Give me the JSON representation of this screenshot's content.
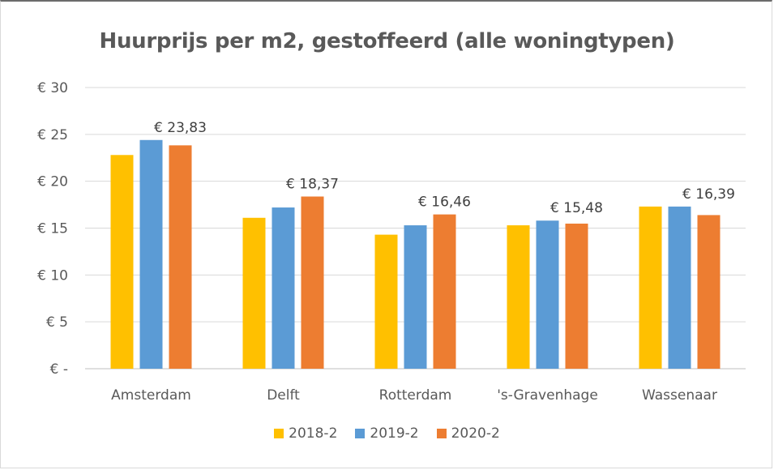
{
  "chart_data": {
    "type": "bar",
    "title": "Huurprijs per m2, gestoffeerd (alle woningtypen)",
    "xlabel": "",
    "ylabel": "",
    "categories": [
      "Amsterdam",
      "Delft",
      "Rotterdam",
      "'s-Gravenhage",
      "Wassenaar"
    ],
    "series": [
      {
        "name": "2018-2",
        "color": "#FFC000",
        "values": [
          22.8,
          16.1,
          14.3,
          15.3,
          17.3
        ]
      },
      {
        "name": "2019-2",
        "color": "#5B9BD5",
        "values": [
          24.4,
          17.2,
          15.3,
          15.8,
          17.3
        ]
      },
      {
        "name": "2020-2",
        "color": "#ED7D31",
        "values": [
          23.83,
          18.37,
          16.46,
          15.48,
          16.39
        ]
      }
    ],
    "data_labels": [
      {
        "category": "Amsterdam",
        "series": "2020-2",
        "text": "€ 23,83"
      },
      {
        "category": "Delft",
        "series": "2020-2",
        "text": "€ 18,37"
      },
      {
        "category": "Rotterdam",
        "series": "2020-2",
        "text": "€ 16,46"
      },
      {
        "category": "'s-Gravenhage",
        "series": "2020-2",
        "text": "€ 15,48"
      },
      {
        "category": "Wassenaar",
        "series": "2020-2",
        "text": "€ 16,39"
      }
    ],
    "ylim": [
      0,
      30
    ],
    "yticks": [
      0,
      5,
      10,
      15,
      20,
      25,
      30
    ],
    "ytick_labels": [
      "€ -",
      "€ 5",
      "€ 10",
      "€ 15",
      "€ 20",
      "€ 25",
      "€ 30"
    ],
    "grid": true,
    "legend_position": "bottom"
  }
}
